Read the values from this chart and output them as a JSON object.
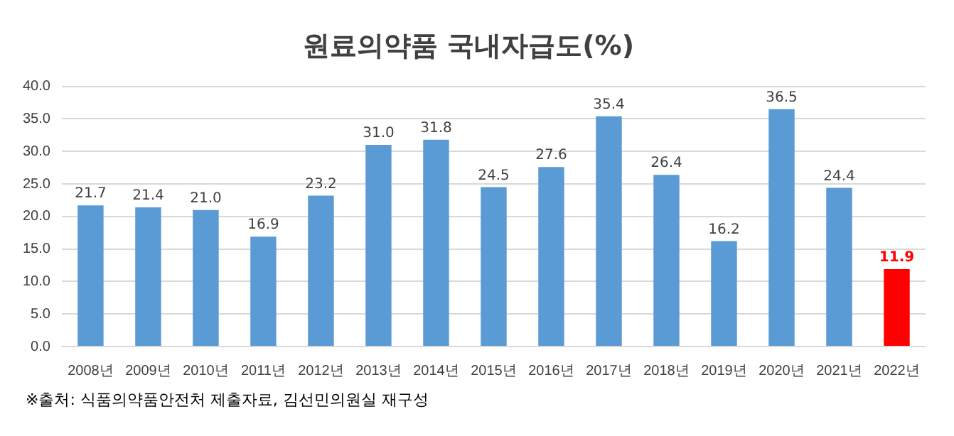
{
  "chart_data": {
    "type": "bar",
    "title": "원료의약품 국내자급도(%)",
    "categories": [
      "2008년",
      "2009년",
      "2010년",
      "2011년",
      "2012년",
      "2013년",
      "2014년",
      "2015년",
      "2016년",
      "2017년",
      "2018년",
      "2019년",
      "2020년",
      "2021년",
      "2022년"
    ],
    "values": [
      21.7,
      21.4,
      21.0,
      16.9,
      23.2,
      31.0,
      31.8,
      24.5,
      27.6,
      35.4,
      26.4,
      16.2,
      36.5,
      24.4,
      11.9
    ],
    "value_labels": [
      "21.7",
      "21.4",
      "21.0",
      "16.9",
      "23.2",
      "31.0",
      "31.8",
      "24.5",
      "27.6",
      "35.4",
      "26.4",
      "16.2",
      "36.5",
      "24.4",
      "11.9"
    ],
    "color": "#5b9bd5",
    "colors": [
      "#5b9bd5",
      "#5b9bd5",
      "#5b9bd5",
      "#5b9bd5",
      "#5b9bd5",
      "#5b9bd5",
      "#5b9bd5",
      "#5b9bd5",
      "#5b9bd5",
      "#5b9bd5",
      "#5b9bd5",
      "#5b9bd5",
      "#5b9bd5",
      "#5b9bd5",
      "#ff0000"
    ],
    "ylim": [
      0,
      40
    ],
    "yticks": [
      {
        "value": 0,
        "label": "0.0"
      },
      {
        "value": 5,
        "label": "5.0"
      },
      {
        "value": 10,
        "label": "10.0"
      },
      {
        "value": 15,
        "label": "15.0"
      },
      {
        "value": 20,
        "label": "20.0"
      },
      {
        "value": 25,
        "label": "25.0"
      },
      {
        "value": 30,
        "label": "30.0"
      },
      {
        "value": 35,
        "label": "35.0"
      },
      {
        "value": 40,
        "label": "40.0"
      }
    ],
    "grid": "y",
    "legend": false,
    "annotations": [
      "※출처: 식품의약품안전처 제출자료, 김선민의원실 재구성"
    ]
  }
}
